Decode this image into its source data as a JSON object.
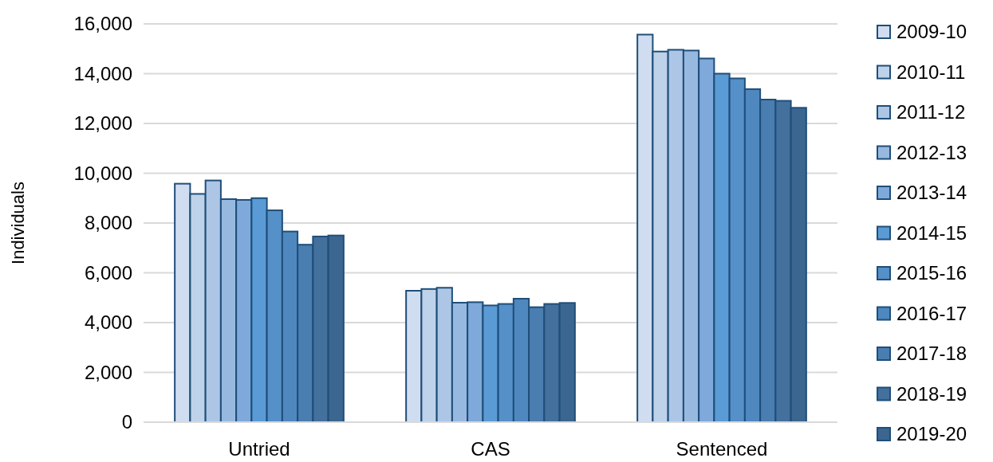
{
  "chart_data": {
    "type": "bar",
    "ylabel": "Individuals",
    "categories": [
      "Untried",
      "CAS",
      "Sentenced"
    ],
    "series": [
      {
        "name": "2009-10",
        "color": "#d0ddf0",
        "values": [
          9580,
          5280,
          15570
        ]
      },
      {
        "name": "2010-11",
        "color": "#bed2ea",
        "values": [
          9170,
          5350,
          14890
        ]
      },
      {
        "name": "2011-12",
        "color": "#adc6e6",
        "values": [
          9710,
          5400,
          14960
        ]
      },
      {
        "name": "2012-13",
        "color": "#97b9e0",
        "values": [
          8960,
          4800,
          14930
        ]
      },
      {
        "name": "2013-14",
        "color": "#7ea9da",
        "values": [
          8930,
          4820,
          14610
        ]
      },
      {
        "name": "2014-15",
        "color": "#5b9bd5",
        "values": [
          9000,
          4690,
          14000
        ]
      },
      {
        "name": "2015-16",
        "color": "#5590c8",
        "values": [
          8510,
          4750,
          13810
        ]
      },
      {
        "name": "2016-17",
        "color": "#4f88bf",
        "values": [
          7660,
          4960,
          13380
        ]
      },
      {
        "name": "2017-18",
        "color": "#4a7db0",
        "values": [
          7130,
          4620,
          12960
        ]
      },
      {
        "name": "2018-19",
        "color": "#44709e",
        "values": [
          7460,
          4750,
          12910
        ]
      },
      {
        "name": "2019-20",
        "color": "#3b6690",
        "values": [
          7500,
          4790,
          12630
        ]
      }
    ],
    "ylim": [
      0,
      16000
    ],
    "yticks": [
      {
        "value": 0,
        "label": "0"
      },
      {
        "value": 2000,
        "label": "2,000"
      },
      {
        "value": 4000,
        "label": "4,000"
      },
      {
        "value": 6000,
        "label": "6,000"
      },
      {
        "value": 8000,
        "label": "8,000"
      },
      {
        "value": 10000,
        "label": "10,000"
      },
      {
        "value": 12000,
        "label": "12,000"
      },
      {
        "value": 14000,
        "label": "14,000"
      },
      {
        "value": 16000,
        "label": "16,000"
      }
    ],
    "grid": "y",
    "legend": "right"
  }
}
